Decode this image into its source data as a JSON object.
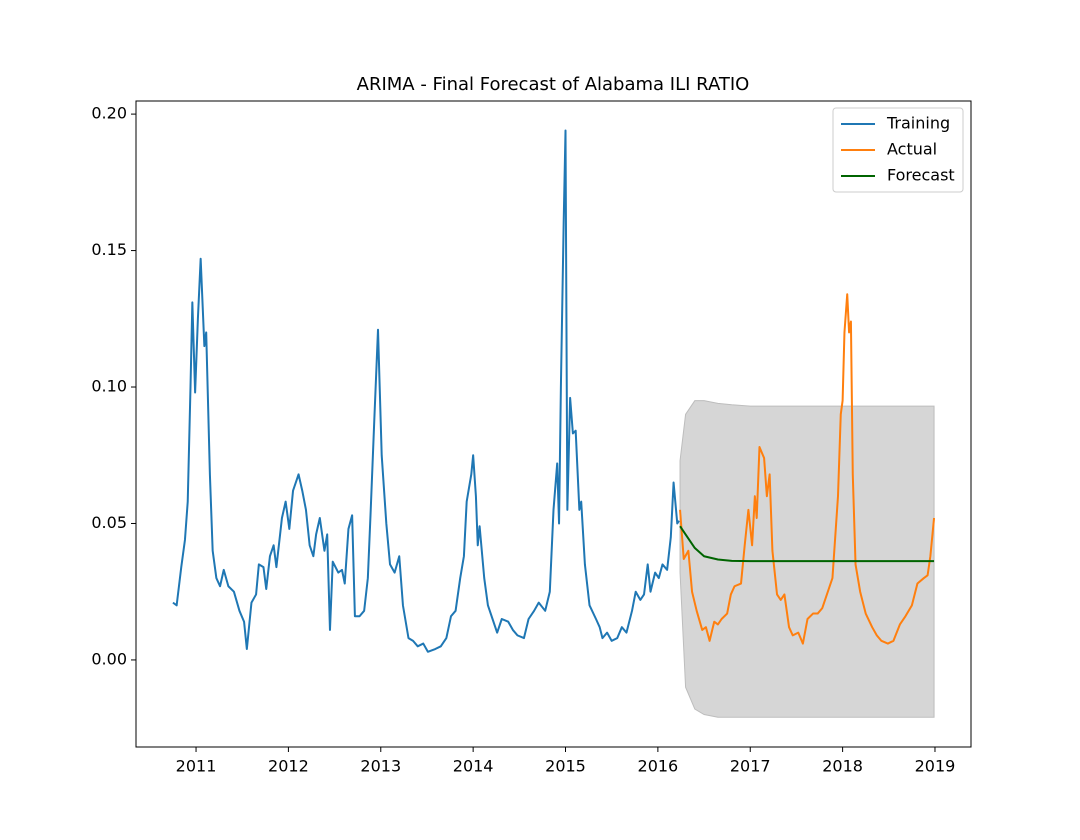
{
  "chart_data": {
    "type": "line",
    "title": "ARIMA - Final Forecast of Alabama ILI RATIO",
    "xlim": [
      2010.35,
      2019.39
    ],
    "xticks": [
      2011,
      2012,
      2013,
      2014,
      2015,
      2016,
      2017,
      2018,
      2019
    ],
    "ylim": [
      -0.0319,
      0.2048
    ],
    "yticks": [
      {
        "value": 0,
        "label": "0.00"
      },
      0.05,
      {
        "value": 0.1,
        "label": "0.10"
      },
      0.15,
      {
        "value": 0.2,
        "label": "0.20"
      }
    ],
    "legend": "upper right",
    "band_color": "#d6d6d6",
    "series": [
      {
        "name": "Training",
        "color": "#1f77b4",
        "x": [
          2010.75,
          2010.79,
          2010.84,
          2010.88,
          2010.91,
          2010.94,
          2010.96,
          2010.99,
          2011.02,
          2011.05,
          2011.09,
          2011.11,
          2011.15,
          2011.18,
          2011.22,
          2011.26,
          2011.3,
          2011.35,
          2011.41,
          2011.47,
          2011.52,
          2011.55,
          2011.6,
          2011.65,
          2011.68,
          2011.73,
          2011.76,
          2011.8,
          2011.84,
          2011.87,
          2011.9,
          2011.93,
          2011.97,
          2012.01,
          2012.05,
          2012.09,
          2012.11,
          2012.15,
          2012.19,
          2012.23,
          2012.27,
          2012.3,
          2012.34,
          2012.39,
          2012.42,
          2012.45,
          2012.48,
          2012.54,
          2012.58,
          2012.61,
          2012.65,
          2012.69,
          2012.72,
          2012.77,
          2012.82,
          2012.86,
          2012.89,
          2012.93,
          2012.97,
          2013.01,
          2013.06,
          2013.1,
          2013.15,
          2013.2,
          2013.24,
          2013.3,
          2013.35,
          2013.4,
          2013.46,
          2013.51,
          2013.59,
          2013.65,
          2013.71,
          2013.76,
          2013.81,
          2013.86,
          2013.9,
          2013.93,
          2013.98,
          2014.0,
          2014.03,
          2014.05,
          2014.07,
          2014.12,
          2014.16,
          2014.21,
          2014.26,
          2014.31,
          2014.38,
          2014.43,
          2014.48,
          2014.55,
          2014.6,
          2014.66,
          2014.71,
          2014.78,
          2014.83,
          2014.87,
          2014.91,
          2014.93,
          2014.95,
          2014.98,
          2015.0,
          2015.02,
          2015.05,
          2015.08,
          2015.11,
          2015.15,
          2015.17,
          2015.21,
          2015.26,
          2015.33,
          2015.37,
          2015.4,
          2015.45,
          2015.5,
          2015.56,
          2015.61,
          2015.66,
          2015.72,
          2015.76,
          2015.81,
          2015.85,
          2015.89,
          2015.92,
          2015.97,
          2016.01,
          2016.05,
          2016.1,
          2016.14,
          2016.17,
          2016.21,
          2016.23
        ],
        "values": [
          0.021,
          0.02,
          0.034,
          0.044,
          0.058,
          0.1,
          0.131,
          0.098,
          0.125,
          0.147,
          0.115,
          0.12,
          0.068,
          0.04,
          0.03,
          0.027,
          0.033,
          0.027,
          0.025,
          0.018,
          0.014,
          0.004,
          0.021,
          0.024,
          0.035,
          0.034,
          0.026,
          0.038,
          0.042,
          0.034,
          0.043,
          0.052,
          0.058,
          0.048,
          0.062,
          0.066,
          0.068,
          0.062,
          0.055,
          0.042,
          0.038,
          0.046,
          0.052,
          0.04,
          0.046,
          0.011,
          0.036,
          0.032,
          0.033,
          0.028,
          0.048,
          0.053,
          0.016,
          0.016,
          0.018,
          0.03,
          0.054,
          0.088,
          0.121,
          0.075,
          0.05,
          0.035,
          0.032,
          0.038,
          0.02,
          0.008,
          0.007,
          0.005,
          0.006,
          0.003,
          0.004,
          0.005,
          0.008,
          0.016,
          0.018,
          0.03,
          0.038,
          0.058,
          0.068,
          0.075,
          0.06,
          0.042,
          0.049,
          0.03,
          0.02,
          0.015,
          0.01,
          0.015,
          0.014,
          0.011,
          0.009,
          0.008,
          0.015,
          0.018,
          0.021,
          0.018,
          0.025,
          0.055,
          0.072,
          0.05,
          0.1,
          0.16,
          0.194,
          0.055,
          0.096,
          0.083,
          0.084,
          0.055,
          0.058,
          0.035,
          0.02,
          0.015,
          0.012,
          0.008,
          0.01,
          0.007,
          0.008,
          0.012,
          0.01,
          0.018,
          0.025,
          0.022,
          0.024,
          0.035,
          0.025,
          0.032,
          0.03,
          0.035,
          0.033,
          0.045,
          0.065,
          0.05,
          0.051
        ]
      },
      {
        "name": "Actual",
        "color": "#ff7f0e",
        "x": [
          2016.24,
          2016.28,
          2016.33,
          2016.37,
          2016.42,
          2016.48,
          2016.52,
          2016.56,
          2016.61,
          2016.65,
          2016.69,
          2016.75,
          2016.79,
          2016.83,
          2016.9,
          2016.94,
          2016.98,
          2017.02,
          2017.05,
          2017.07,
          2017.1,
          2017.15,
          2017.18,
          2017.21,
          2017.24,
          2017.29,
          2017.33,
          2017.37,
          2017.42,
          2017.46,
          2017.52,
          2017.57,
          2017.62,
          2017.68,
          2017.73,
          2017.78,
          2017.84,
          2017.89,
          2017.95,
          2017.98,
          2018.0,
          2018.02,
          2018.05,
          2018.07,
          2018.09,
          2018.11,
          2018.14,
          2018.19,
          2018.25,
          2018.32,
          2018.37,
          2018.42,
          2018.49,
          2018.55,
          2018.62,
          2018.68,
          2018.75,
          2018.81,
          2018.88,
          2018.92,
          2018.95,
          2018.99
        ],
        "values": [
          0.055,
          0.037,
          0.04,
          0.025,
          0.018,
          0.011,
          0.012,
          0.007,
          0.014,
          0.013,
          0.015,
          0.017,
          0.024,
          0.027,
          0.028,
          0.042,
          0.055,
          0.042,
          0.06,
          0.052,
          0.078,
          0.074,
          0.06,
          0.068,
          0.04,
          0.024,
          0.022,
          0.024,
          0.012,
          0.009,
          0.01,
          0.006,
          0.015,
          0.017,
          0.017,
          0.019,
          0.025,
          0.03,
          0.06,
          0.09,
          0.095,
          0.12,
          0.134,
          0.12,
          0.124,
          0.068,
          0.035,
          0.025,
          0.017,
          0.012,
          0.009,
          0.007,
          0.006,
          0.007,
          0.013,
          0.016,
          0.02,
          0.028,
          0.03,
          0.031,
          0.038,
          0.052
        ]
      },
      {
        "name": "Forecast",
        "color": "#006400",
        "x": [
          2016.24,
          2016.3,
          2016.4,
          2016.5,
          2016.65,
          2016.8,
          2017.0,
          2018.99
        ],
        "values": [
          0.049,
          0.046,
          0.041,
          0.038,
          0.0368,
          0.0363,
          0.0362,
          0.0362
        ],
        "lower": [
          0.032,
          -0.01,
          -0.018,
          -0.02,
          -0.021,
          -0.021,
          -0.021,
          -0.021
        ],
        "upper": [
          0.073,
          0.09,
          0.095,
          0.095,
          0.094,
          0.0935,
          0.093,
          0.093
        ]
      }
    ]
  }
}
